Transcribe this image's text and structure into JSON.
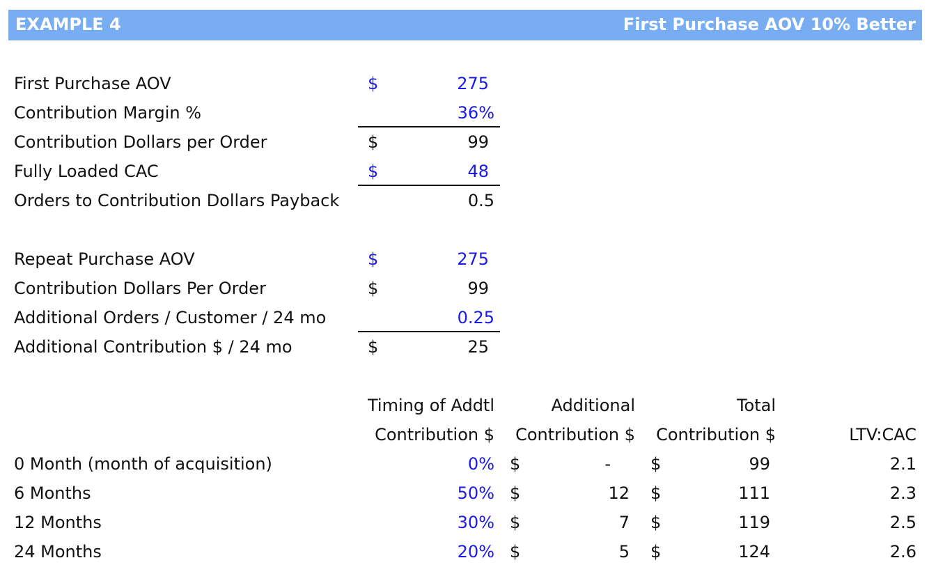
{
  "header": {
    "title_left": "EXAMPLE 4",
    "title_right": "First Purchase AOV 10% Better"
  },
  "section1": [
    {
      "label": "First Purchase AOV",
      "currency": "$",
      "value": "275",
      "input": true
    },
    {
      "label": "Contribution Margin %",
      "currency": "",
      "value": "36%",
      "input": true
    },
    {
      "label": "Contribution Dollars per Order",
      "currency": "$",
      "value": "99",
      "input": false
    },
    {
      "label": "Fully Loaded CAC",
      "currency": "$",
      "value": "48",
      "input": true
    },
    {
      "label": "Orders to Contribution Dollars Payback",
      "currency": "",
      "value": "0.5",
      "input": false
    }
  ],
  "section2": [
    {
      "label": "Repeat Purchase AOV",
      "currency": "$",
      "value": "275",
      "input": true
    },
    {
      "label": "Contribution Dollars Per Order",
      "currency": "$",
      "value": "99",
      "input": false
    },
    {
      "label": "Additional Orders / Customer / 24 mo",
      "currency": "",
      "value": "0.25",
      "input": true
    },
    {
      "label": "Additional Contribution $ / 24 mo",
      "currency": "$",
      "value": "25",
      "input": false
    }
  ],
  "table": {
    "headers": {
      "timing_line1": "Timing of Addtl",
      "timing_line2": "Contribution $",
      "additional_line1": "Additional",
      "additional_line2": "Contribution $",
      "total_line1": "Total",
      "total_line2": "Contribution $",
      "ltv": "LTV:CAC"
    },
    "rows": [
      {
        "period": "0 Month (month of acquisition)",
        "timing": "0%",
        "add_cur": "$",
        "additional": "-",
        "tot_cur": "$",
        "total": "99",
        "ltv": "2.1"
      },
      {
        "period": "6 Months",
        "timing": "50%",
        "add_cur": "$",
        "additional": "12",
        "tot_cur": "$",
        "total": "111",
        "ltv": "2.3"
      },
      {
        "period": "12 Months",
        "timing": "30%",
        "add_cur": "$",
        "additional": "7",
        "tot_cur": "$",
        "total": "119",
        "ltv": "2.5"
      },
      {
        "period": "24 Months",
        "timing": "20%",
        "add_cur": "$",
        "additional": "5",
        "tot_cur": "$",
        "total": "124",
        "ltv": "2.6"
      }
    ]
  }
}
